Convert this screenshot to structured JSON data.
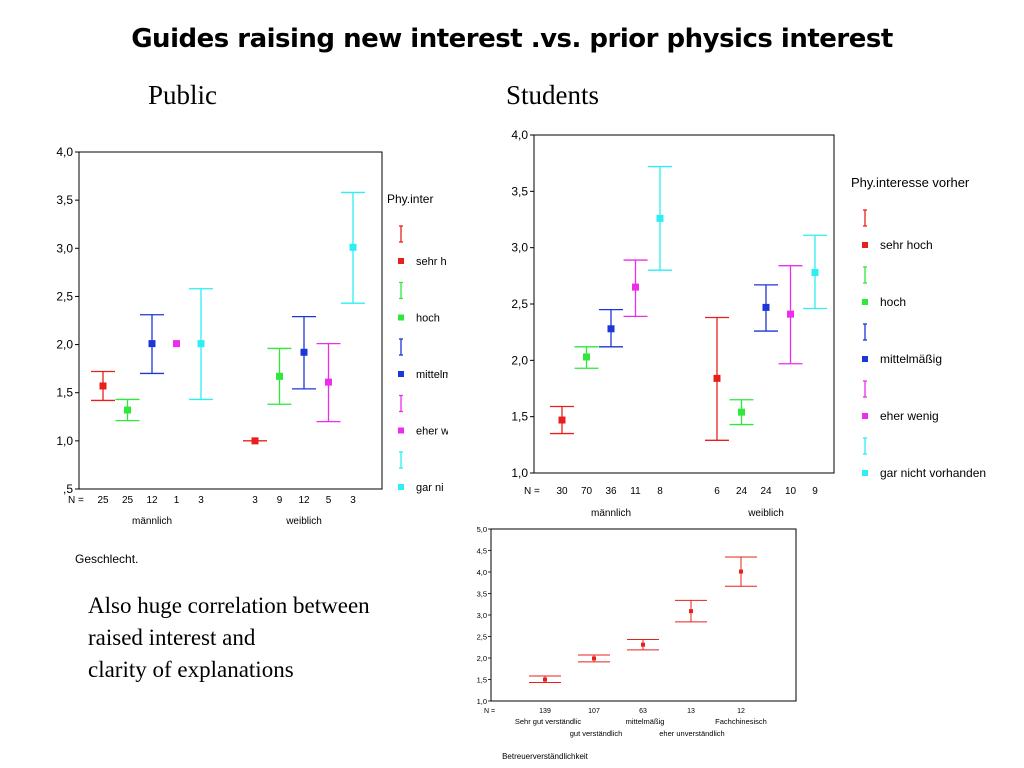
{
  "title": "Guides raising new interest  .vs.  prior physics interest",
  "subtitle_public": "Public",
  "subtitle_students": "Students",
  "xaxis_label_public": "Geschlecht.",
  "body_lines": [
    "Also huge correlation between",
    "raised interest and",
    "clarity of explanations"
  ],
  "chart_data": [
    {
      "id": "public",
      "type": "scatter",
      "subtitle": "Public",
      "ylim": [
        0.5,
        4.0
      ],
      "yticks": [
        "4,0",
        "3,5",
        "3,0",
        "2,5",
        "2,0",
        "1,5",
        "1,0",
        ",5"
      ],
      "ytick_values": [
        4.0,
        3.5,
        3.0,
        2.5,
        2.0,
        1.5,
        1.0,
        0.5
      ],
      "groups": [
        "männlich",
        "weiblich"
      ],
      "n_label": "N =",
      "legend_title": "Phy.inter",
      "legend": [
        "sehr h",
        "hoch",
        "mittelm",
        "eher w",
        "gar ni"
      ],
      "colors": [
        "#e8201c",
        "#2ee83a",
        "#1c36d8",
        "#ee2cee",
        "#2ceef4"
      ],
      "xlabel": "Geschlecht.",
      "points": [
        {
          "group": 0,
          "series": 0,
          "n": "25",
          "mean": 1.57,
          "lo": 1.42,
          "hi": 1.72
        },
        {
          "group": 0,
          "series": 1,
          "n": "25",
          "mean": 1.32,
          "lo": 1.21,
          "hi": 1.43
        },
        {
          "group": 0,
          "series": 2,
          "n": "12",
          "mean": 2.01,
          "lo": 1.7,
          "hi": 2.31
        },
        {
          "group": 0,
          "series": 3,
          "n": "1",
          "mean": 2.01,
          "lo": null,
          "hi": null
        },
        {
          "group": 0,
          "series": 4,
          "n": "3",
          "mean": 2.01,
          "lo": 1.43,
          "hi": 2.58
        },
        {
          "group": 1,
          "series": 0,
          "n": "3",
          "mean": 1.0,
          "lo": 1.0,
          "hi": 1.0
        },
        {
          "group": 1,
          "series": 1,
          "n": "9",
          "mean": 1.67,
          "lo": 1.38,
          "hi": 1.96
        },
        {
          "group": 1,
          "series": 2,
          "n": "12",
          "mean": 1.92,
          "lo": 1.54,
          "hi": 2.29
        },
        {
          "group": 1,
          "series": 3,
          "n": "5",
          "mean": 1.61,
          "lo": 1.2,
          "hi": 2.01
        },
        {
          "group": 1,
          "series": 4,
          "n": "3",
          "mean": 3.01,
          "lo": 2.43,
          "hi": 3.58
        }
      ]
    },
    {
      "id": "students",
      "type": "scatter",
      "subtitle": "Students",
      "ylim": [
        1.0,
        4.0
      ],
      "yticks": [
        "4,0",
        "3,5",
        "3,0",
        "2,5",
        "2,0",
        "1,5",
        "1,0"
      ],
      "ytick_values": [
        4.0,
        3.5,
        3.0,
        2.5,
        2.0,
        1.5,
        1.0
      ],
      "groups": [
        "männlich",
        "weiblich"
      ],
      "n_label": "N =",
      "legend_title": "Phy.interesse vorher",
      "legend": [
        "sehr hoch",
        "hoch",
        "mittelmäßig",
        "eher wenig",
        "gar nicht vorhanden"
      ],
      "colors": [
        "#e8201c",
        "#2ee83a",
        "#1c36d8",
        "#ee2cee",
        "#2ceef4"
      ],
      "points": [
        {
          "group": 0,
          "series": 0,
          "n": "30",
          "mean": 1.47,
          "lo": 1.35,
          "hi": 1.59
        },
        {
          "group": 0,
          "series": 1,
          "n": "70",
          "mean": 2.03,
          "lo": 1.93,
          "hi": 2.12
        },
        {
          "group": 0,
          "series": 2,
          "n": "36",
          "mean": 2.28,
          "lo": 2.12,
          "hi": 2.45
        },
        {
          "group": 0,
          "series": 3,
          "n": "11",
          "mean": 2.65,
          "lo": 2.39,
          "hi": 2.89
        },
        {
          "group": 0,
          "series": 4,
          "n": "8",
          "mean": 3.26,
          "lo": 2.8,
          "hi": 3.72
        },
        {
          "group": 1,
          "series": 0,
          "n": "6",
          "mean": 1.84,
          "lo": 1.29,
          "hi": 2.38
        },
        {
          "group": 1,
          "series": 1,
          "n": "24",
          "mean": 1.54,
          "lo": 1.43,
          "hi": 1.65
        },
        {
          "group": 1,
          "series": 2,
          "n": "24",
          "mean": 2.47,
          "lo": 2.26,
          "hi": 2.67
        },
        {
          "group": 1,
          "series": 3,
          "n": "10",
          "mean": 2.41,
          "lo": 1.97,
          "hi": 2.84
        },
        {
          "group": 1,
          "series": 4,
          "n": "9",
          "mean": 2.78,
          "lo": 2.46,
          "hi": 3.11
        }
      ]
    },
    {
      "id": "clarity",
      "type": "scatter",
      "ylim": [
        1.0,
        5.0
      ],
      "yticks": [
        "5,0",
        "4,5",
        "4,0",
        "3,5",
        "3,0",
        "2,5",
        "2,0",
        "1,5",
        "1,0"
      ],
      "ytick_values": [
        5.0,
        4.5,
        4.0,
        3.5,
        3.0,
        2.5,
        2.0,
        1.5,
        1.0
      ],
      "n_label": "N =",
      "categories": [
        "Sehr gut verständlic",
        "gut verständlich",
        "mittelmäßig",
        "eher unverständlich",
        "Fachchinesisch"
      ],
      "xlabel": "Betreuerverständlichkeit",
      "color": "#e8201c",
      "points": [
        {
          "n": "139",
          "mean": 1.5,
          "lo": 1.43,
          "hi": 1.58
        },
        {
          "n": "107",
          "mean": 1.99,
          "lo": 1.91,
          "hi": 2.07
        },
        {
          "n": "63",
          "mean": 2.31,
          "lo": 2.19,
          "hi": 2.43
        },
        {
          "n": "13",
          "mean": 3.09,
          "lo": 2.84,
          "hi": 3.34
        },
        {
          "n": "12",
          "mean": 4.01,
          "lo": 3.67,
          "hi": 4.35
        }
      ]
    }
  ]
}
